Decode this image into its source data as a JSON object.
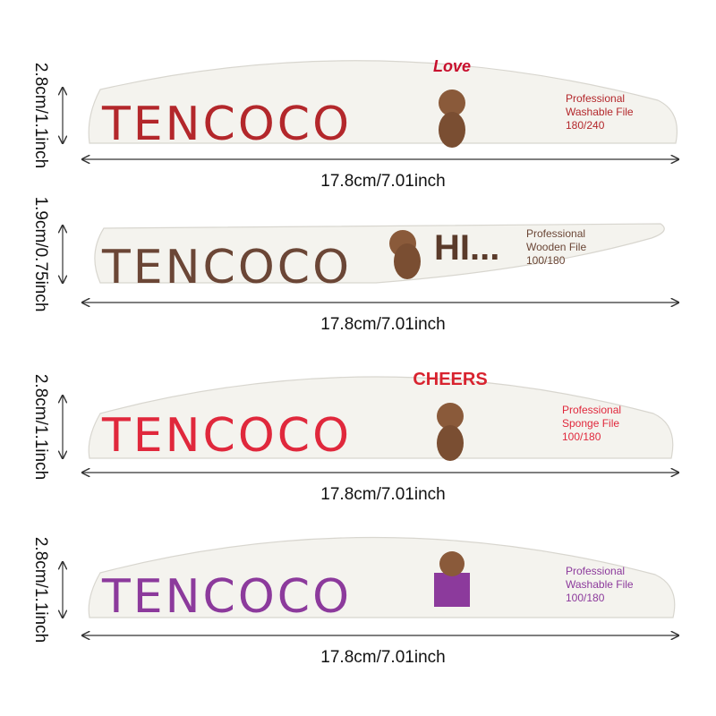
{
  "files": [
    {
      "brand": "TENCOCO",
      "sticker": "Love",
      "line1": "Professional",
      "line2": "Washable File",
      "line3": "180/240",
      "height": "2.8cm/1.1inch",
      "width": "17.8cm/7.01inch"
    },
    {
      "brand": "TENCOCO",
      "sticker": "HI...",
      "line1": "Professional",
      "line2": "Wooden File",
      "line3": "100/180",
      "height": "1.9cm/0.75inch",
      "width": "17.8cm/7.01inch"
    },
    {
      "brand": "TENCOCO",
      "sticker": "CHEERS",
      "line1": "Professional",
      "line2": "Sponge File",
      "line3": "100/180",
      "height": "2.8cm/1.1inch",
      "width": "17.8cm/7.01inch"
    },
    {
      "brand": "TENCOCO",
      "line1": "Professional",
      "line2": "Washable File",
      "line3": "100/180",
      "height": "2.8cm/1.1inch",
      "width": "17.8cm/7.01inch"
    }
  ]
}
